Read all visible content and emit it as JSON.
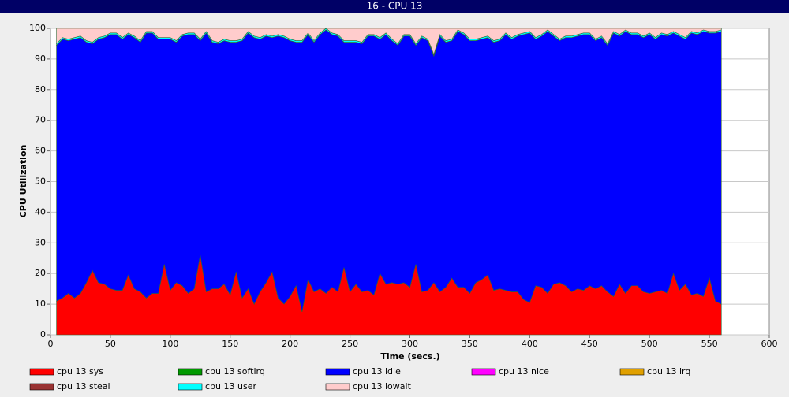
{
  "chart_data": {
    "type": "stacked_area",
    "title": "16 - CPU 13",
    "xlabel": "Time (secs.)",
    "ylabel": "CPU Utilization",
    "xlim": [
      0,
      600
    ],
    "xticks": [
      0,
      50,
      100,
      150,
      200,
      250,
      300,
      350,
      400,
      450,
      500,
      550,
      600
    ],
    "ylim": [
      0,
      100
    ],
    "yticks": [
      0,
      10,
      20,
      30,
      40,
      50,
      60,
      70,
      80,
      90,
      100
    ],
    "grid": true,
    "x": [
      5,
      10,
      15,
      20,
      25,
      30,
      35,
      40,
      45,
      50,
      55,
      60,
      65,
      70,
      75,
      80,
      85,
      90,
      95,
      100,
      105,
      110,
      115,
      120,
      125,
      130,
      135,
      140,
      145,
      150,
      155,
      160,
      165,
      170,
      175,
      180,
      185,
      190,
      195,
      200,
      205,
      210,
      215,
      220,
      225,
      230,
      235,
      240,
      245,
      250,
      255,
      260,
      265,
      270,
      275,
      280,
      285,
      290,
      295,
      300,
      305,
      310,
      315,
      320,
      325,
      330,
      335,
      340,
      345,
      350,
      355,
      360,
      365,
      370,
      375,
      380,
      385,
      390,
      395,
      400,
      405,
      410,
      415,
      420,
      425,
      430,
      435,
      440,
      445,
      450,
      455,
      460,
      465,
      470,
      475,
      480,
      485,
      490,
      495,
      500,
      505,
      510,
      515,
      520,
      525,
      530,
      535,
      540,
      545,
      550,
      555,
      560
    ],
    "series": [
      {
        "name": "cpu 13 sys",
        "color": "#ff0000",
        "values": [
          11,
          12,
          13.5,
          12,
          13.5,
          17,
          21,
          17,
          16.5,
          15,
          14.5,
          14.5,
          19.5,
          15,
          14,
          12,
          13.5,
          13.5,
          23,
          14.5,
          17,
          16,
          13.5,
          15,
          26,
          14,
          15,
          15,
          16.5,
          13,
          20.5,
          12,
          15,
          10,
          14,
          17,
          20.5,
          12,
          10,
          12.5,
          16,
          7.5,
          18,
          14,
          15,
          13.5,
          15.5,
          14,
          22,
          14,
          16.5,
          14,
          14.5,
          13,
          20,
          16.5,
          17,
          16.5,
          17,
          15.5,
          23,
          14,
          14.5,
          17,
          14,
          15.5,
          18.5,
          15.5,
          15.5,
          13.5,
          17,
          18,
          19.5,
          14.5,
          15,
          14.5,
          14,
          14,
          11.5,
          10.5,
          16,
          15.5,
          13.5,
          16.5,
          17,
          16,
          14,
          15,
          14.5,
          16,
          15,
          16,
          14,
          12.5,
          16.5,
          13.5,
          16,
          16,
          14,
          13.5,
          14,
          14.5,
          13.5,
          20,
          14.5,
          16.5,
          13,
          13.5,
          12.5,
          18.5,
          11,
          10
        ]
      },
      {
        "name": "cpu 13 softirq",
        "color": "#009900",
        "values": [
          0,
          0,
          0,
          0,
          0,
          0,
          0,
          0,
          0,
          0,
          0,
          0,
          0,
          0,
          0,
          0,
          0,
          0,
          0,
          0,
          0,
          0,
          0,
          0,
          0,
          0,
          0,
          0,
          0,
          0,
          0,
          0,
          0,
          0,
          0,
          0,
          0,
          0,
          0,
          0,
          0,
          0,
          0,
          0,
          0,
          0,
          0,
          0,
          0,
          0,
          0,
          0,
          0,
          0,
          0,
          0,
          0,
          0,
          0,
          0,
          0,
          0,
          0,
          0,
          0,
          0,
          0,
          0,
          0,
          0,
          0,
          0,
          0,
          0,
          0,
          0,
          0,
          0,
          0,
          0,
          0,
          0,
          0,
          0,
          0,
          0,
          0,
          0,
          0,
          0,
          0,
          0,
          0,
          0,
          0,
          0,
          0,
          0,
          0,
          0,
          0,
          0,
          0,
          0,
          0,
          0,
          0,
          0,
          0,
          0,
          0,
          0
        ]
      },
      {
        "name": "cpu 13 idle",
        "color": "#0000ff",
        "values": [
          83.5,
          84.5,
          82.5,
          84.5,
          83.5,
          78.5,
          74,
          79.5,
          80.5,
          83,
          83.5,
          82,
          78.5,
          82,
          81.5,
          86.5,
          85,
          83,
          73.5,
          82,
          78.5,
          81.5,
          84.5,
          83,
          70,
          84.5,
          80.5,
          80,
          79.5,
          82.5,
          75,
          84,
          83.5,
          87,
          82.5,
          80.5,
          76.5,
          85.5,
          87,
          83.5,
          79.5,
          88,
          80,
          81.5,
          83,
          86,
          82.5,
          83.5,
          73.5,
          81.5,
          79,
          81,
          83,
          84.5,
          76.5,
          81.5,
          79,
          78,
          80.5,
          82,
          71.5,
          83,
          81.5,
          74,
          83.5,
          80,
          77.5,
          83.5,
          82.5,
          82.5,
          79,
          78.5,
          77.5,
          81,
          81,
          83.5,
          82.5,
          83.5,
          86.5,
          88,
          80.5,
          82,
          85.5,
          81,
          79,
          81,
          83,
          82.5,
          83.5,
          82,
          81,
          81,
          80.5,
          86,
          81,
          85.5,
          82,
          82,
          83,
          84.5,
          82.5,
          83.5,
          84,
          78.5,
          83,
          80,
          85.5,
          84.5,
          86.5,
          80,
          87.5,
          89
        ]
      },
      {
        "name": "cpu 13 nice",
        "color": "#ff00ff",
        "values": [
          0,
          0,
          0,
          0,
          0,
          0,
          0,
          0,
          0,
          0,
          0,
          0,
          0,
          0,
          0,
          0,
          0,
          0,
          0,
          0,
          0,
          0,
          0,
          0,
          0,
          0,
          0,
          0,
          0,
          0,
          0,
          0,
          0,
          0,
          0,
          0,
          0,
          0,
          0,
          0,
          0,
          0,
          0,
          0,
          0,
          0,
          0,
          0,
          0,
          0,
          0,
          0,
          0,
          0,
          0,
          0,
          0,
          0,
          0,
          0,
          0,
          0,
          0,
          0,
          0,
          0,
          0,
          0,
          0,
          0,
          0,
          0,
          0,
          0,
          0,
          0,
          0,
          0,
          0,
          0,
          0,
          0,
          0,
          0,
          0,
          0,
          0,
          0,
          0,
          0,
          0,
          0,
          0,
          0,
          0,
          0,
          0,
          0,
          0,
          0,
          0,
          0,
          0,
          0,
          0,
          0,
          0,
          0,
          0,
          0,
          0,
          0
        ]
      },
      {
        "name": "cpu 13 irq",
        "color": "#e0a000",
        "values": [
          0,
          0,
          0,
          0,
          0,
          0,
          0,
          0,
          0,
          0,
          0,
          0,
          0,
          0,
          0,
          0,
          0,
          0,
          0,
          0,
          0,
          0,
          0,
          0,
          0,
          0,
          0,
          0,
          0,
          0,
          0,
          0,
          0,
          0,
          0,
          0,
          0,
          0,
          0,
          0,
          0,
          0,
          0,
          0,
          0,
          0,
          0,
          0,
          0,
          0,
          0,
          0,
          0,
          0,
          0,
          0,
          0,
          0,
          0,
          0,
          0,
          0,
          0,
          0,
          0,
          0,
          0,
          0,
          0,
          0,
          0,
          0,
          0,
          0,
          0,
          0,
          0,
          0,
          0,
          0,
          0,
          0,
          0,
          0,
          0,
          0,
          0,
          0,
          0,
          0,
          0,
          0,
          0,
          0,
          0,
          0,
          0,
          0,
          0,
          0,
          0,
          0,
          0,
          0,
          0,
          0,
          0,
          0,
          0,
          0,
          0,
          0
        ]
      },
      {
        "name": "cpu 13 steal",
        "color": "#993333",
        "values": [
          0,
          0,
          0,
          0,
          0,
          0,
          0,
          0,
          0,
          0,
          0,
          0,
          0,
          0,
          0,
          0,
          0,
          0,
          0,
          0,
          0,
          0,
          0,
          0,
          0,
          0,
          0,
          0,
          0,
          0,
          0,
          0,
          0,
          0,
          0,
          0,
          0,
          0,
          0,
          0,
          0,
          0,
          0,
          0,
          0,
          0,
          0,
          0,
          0,
          0,
          0,
          0,
          0,
          0,
          0,
          0,
          0,
          0,
          0,
          0,
          0,
          0,
          0,
          0,
          0,
          0,
          0,
          0,
          0,
          0,
          0,
          0,
          0,
          0,
          0,
          0,
          0,
          0,
          0,
          0,
          0,
          0,
          0,
          0,
          0,
          0,
          0,
          0,
          0,
          0,
          0,
          0,
          0,
          0,
          0,
          0,
          0,
          0,
          0,
          0,
          0,
          0,
          0,
          0,
          0,
          0,
          0,
          0,
          0,
          0,
          0,
          0
        ]
      },
      {
        "name": "cpu 13 user",
        "color": "#00ffff",
        "values": [
          0.5,
          0.5,
          0.5,
          0.5,
          0.5,
          0.5,
          0.5,
          0.5,
          0.5,
          0.5,
          0.5,
          0.5,
          0.5,
          0.5,
          0.5,
          0.5,
          0.5,
          0.5,
          0.5,
          0.5,
          0.5,
          0.5,
          0.5,
          0.5,
          0.5,
          0.5,
          0.5,
          0.5,
          0.5,
          0.5,
          0.5,
          0.5,
          0.5,
          0.5,
          0.5,
          0.5,
          0.5,
          0.5,
          0.5,
          0.5,
          0.5,
          0.5,
          0.5,
          0.5,
          0.5,
          0.5,
          0.5,
          0.5,
          0.5,
          0.5,
          0.5,
          0.5,
          0.5,
          0.5,
          0.5,
          0.5,
          0.5,
          0.5,
          0.5,
          0.5,
          0.5,
          0.5,
          0.5,
          0.5,
          0.5,
          0.5,
          0.5,
          0.5,
          0.5,
          0.5,
          0.5,
          0.5,
          0.5,
          0.5,
          0.5,
          0.5,
          0.5,
          0.5,
          0.5,
          0.5,
          0.5,
          0.5,
          0.5,
          0.5,
          0.5,
          0.5,
          0.5,
          0.5,
          0.5,
          0.5,
          0.5,
          0.5,
          0.5,
          0.5,
          0.5,
          0.5,
          0.5,
          0.5,
          0.5,
          0.5,
          0.5,
          0.5,
          0.5,
          0.5,
          0.5,
          0.5,
          0.5,
          0.5,
          0.5,
          0.5,
          0.5,
          0.5
        ]
      },
      {
        "name": "cpu 13 iowait",
        "color": "#ffcccc",
        "values": [
          5,
          3,
          3.5,
          3,
          2.5,
          4,
          4.5,
          3,
          2.5,
          1.5,
          1.5,
          3,
          1.5,
          2.5,
          4,
          1,
          1,
          3,
          3,
          3,
          4,
          2,
          1.5,
          1.5,
          3.5,
          1,
          4,
          4.5,
          3.5,
          4,
          4,
          3.5,
          1,
          2.5,
          3,
          2,
          2.5,
          2,
          2.5,
          3.5,
          4,
          4,
          1.5,
          4,
          1.5,
          0,
          1.5,
          2,
          4,
          4,
          4,
          4.5,
          2,
          2,
          3,
          1.5,
          3.5,
          5,
          2,
          2,
          5,
          2.5,
          3.5,
          8.5,
          2,
          4,
          3.5,
          0.5,
          1.5,
          3.5,
          3.5,
          3,
          2.5,
          4,
          3.5,
          1.5,
          3,
          2,
          1.5,
          1,
          3,
          2,
          0.5,
          2,
          3.5,
          2.5,
          2.5,
          2,
          1.5,
          1.5,
          3.5,
          2.5,
          5,
          1,
          2,
          0.5,
          1.5,
          1.5,
          2.5,
          1.5,
          3,
          1.5,
          2,
          1,
          2,
          3,
          1,
          1.5,
          0.5,
          1,
          1,
          0.5
        ]
      }
    ]
  }
}
